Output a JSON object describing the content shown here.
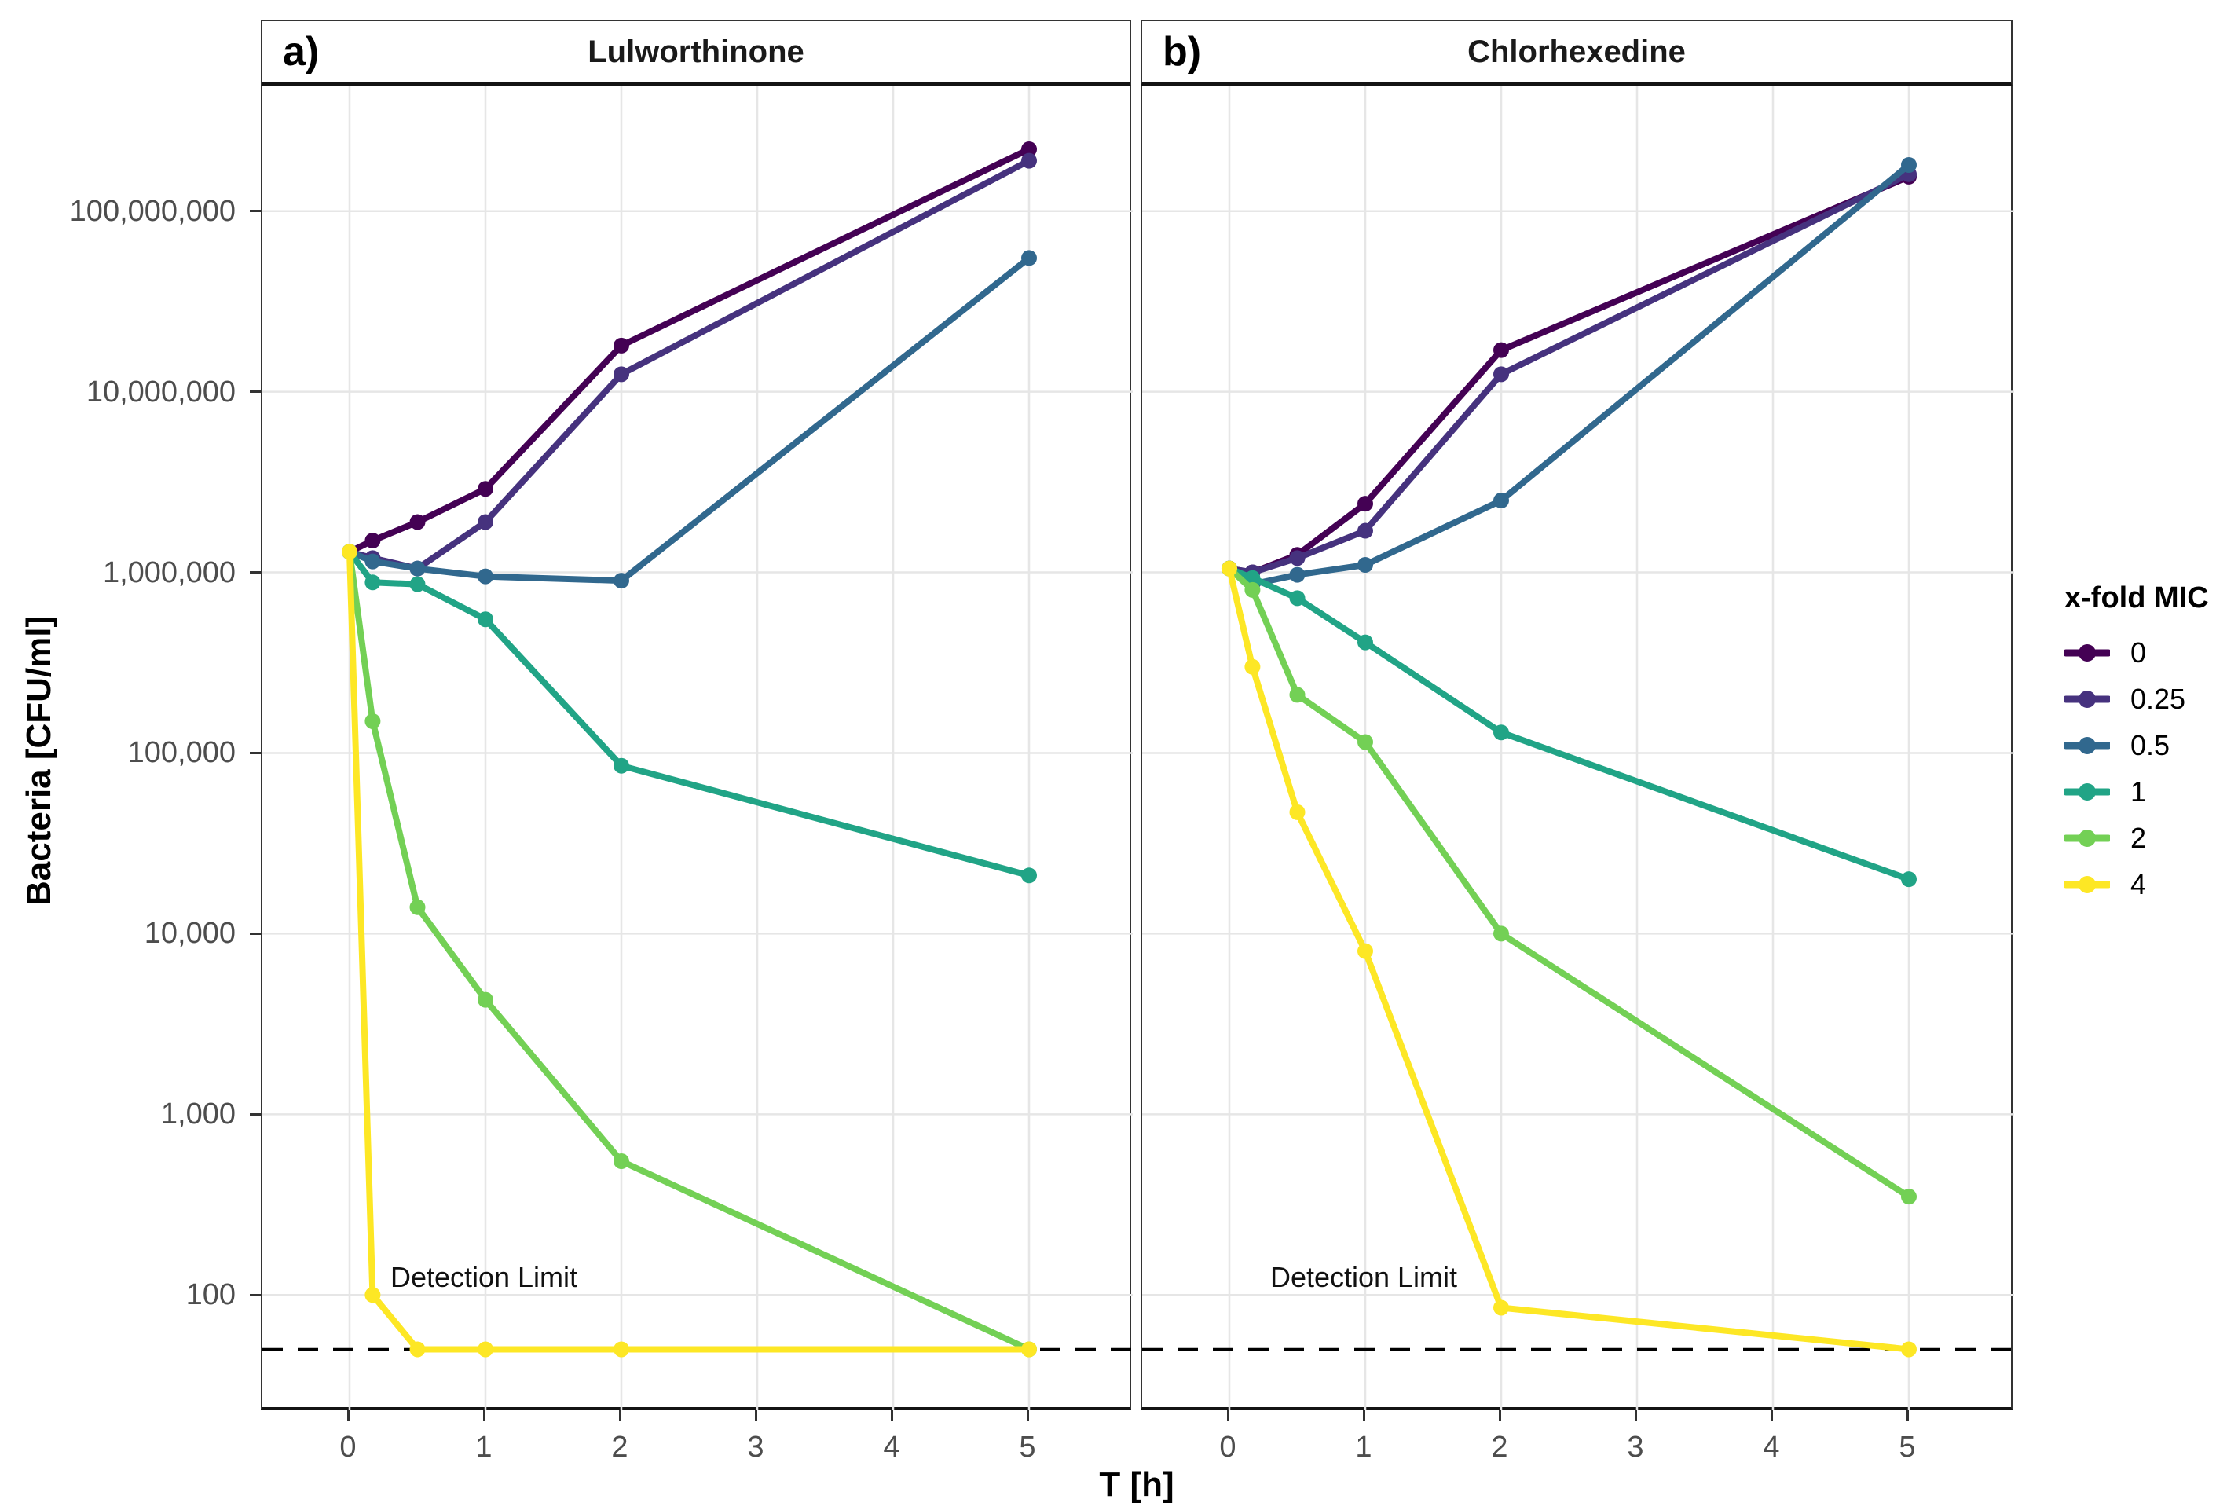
{
  "panels": [
    {
      "label": "a)",
      "title": "Lulworthinone"
    },
    {
      "label": "b)",
      "title": "Chlorhexedine"
    }
  ],
  "axes": {
    "x": {
      "label": "T [h]",
      "tick_labels": [
        "0",
        "1",
        "2",
        "3",
        "4",
        "5"
      ],
      "tick_values": [
        0,
        1,
        2,
        3,
        4,
        5
      ]
    },
    "y": {
      "label": "Bacteria [CFU/ml]",
      "tick_labels": [
        "100",
        "1,000",
        "10,000",
        "100,000",
        "1,000,000",
        "10,000,000",
        "100,000,000"
      ],
      "tick_values": [
        100,
        1000,
        10000,
        100000,
        1000000,
        10000000,
        100000000
      ],
      "scale": "log10"
    }
  },
  "legend": {
    "title": "x-fold MIC",
    "entries": [
      {
        "label": "0",
        "color": "#440154"
      },
      {
        "label": "0.25",
        "color": "#46327e"
      },
      {
        "label": "0.5",
        "color": "#31688e"
      },
      {
        "label": "1",
        "color": "#21a486"
      },
      {
        "label": "2",
        "color": "#73d055"
      },
      {
        "label": "4",
        "color": "#fde725"
      }
    ]
  },
  "detection_limit": {
    "label": "Detection Limit",
    "value": 50
  },
  "chart_data": [
    {
      "type": "line",
      "panel": "a)",
      "title": "Lulworthinone",
      "xlabel": "T [h]",
      "ylabel": "Bacteria [CFU/ml]",
      "x_hours": [
        0,
        0.17,
        0.5,
        1,
        2,
        5
      ],
      "y_scale": "log10",
      "ylim": [
        23,
        490000000
      ],
      "grid": "major-only",
      "legend_position": "right",
      "detection_limit": 50,
      "series": [
        {
          "name": "0",
          "color": "#440154",
          "values": [
            1300000,
            1500000,
            1900000,
            2900000,
            18000000,
            220000000
          ]
        },
        {
          "name": "0.25",
          "color": "#46327e",
          "values": [
            1300000,
            1200000,
            1050000,
            1900000,
            12500000,
            190000000
          ]
        },
        {
          "name": "0.5",
          "color": "#31688e",
          "values": [
            1300000,
            1150000,
            1050000,
            950000,
            900000,
            55000000
          ]
        },
        {
          "name": "1",
          "color": "#21a486",
          "values": [
            1300000,
            880000,
            860000,
            550000,
            85000,
            21000
          ]
        },
        {
          "name": "2",
          "color": "#73d055",
          "values": [
            1300000,
            150000,
            14000,
            4300,
            550,
            50
          ]
        },
        {
          "name": "4",
          "color": "#fde725",
          "values": [
            1300000,
            100,
            50,
            50,
            50,
            50
          ]
        }
      ]
    },
    {
      "type": "line",
      "panel": "b)",
      "title": "Chlorhexedine",
      "xlabel": "T [h]",
      "ylabel": "Bacteria [CFU/ml]",
      "x_hours": [
        0,
        0.17,
        0.5,
        1,
        2,
        5
      ],
      "y_scale": "log10",
      "ylim": [
        23,
        490000000
      ],
      "grid": "major-only",
      "legend_position": "right",
      "detection_limit": 50,
      "series": [
        {
          "name": "0",
          "color": "#440154",
          "values": [
            1050000,
            1000000,
            1250000,
            2400000,
            17000000,
            155000000
          ]
        },
        {
          "name": "0.25",
          "color": "#46327e",
          "values": [
            1050000,
            1000000,
            1200000,
            1700000,
            12500000,
            160000000
          ]
        },
        {
          "name": "0.5",
          "color": "#31688e",
          "values": [
            1050000,
            860000,
            970000,
            1100000,
            2500000,
            180000000
          ]
        },
        {
          "name": "1",
          "color": "#21a486",
          "values": [
            1050000,
            930000,
            720000,
            410000,
            130000,
            20000
          ]
        },
        {
          "name": "2",
          "color": "#73d055",
          "values": [
            1050000,
            800000,
            210000,
            115000,
            10000,
            350
          ]
        },
        {
          "name": "4",
          "color": "#fde725",
          "values": [
            1050000,
            300000,
            47000,
            8000,
            85,
            50
          ]
        }
      ]
    }
  ]
}
